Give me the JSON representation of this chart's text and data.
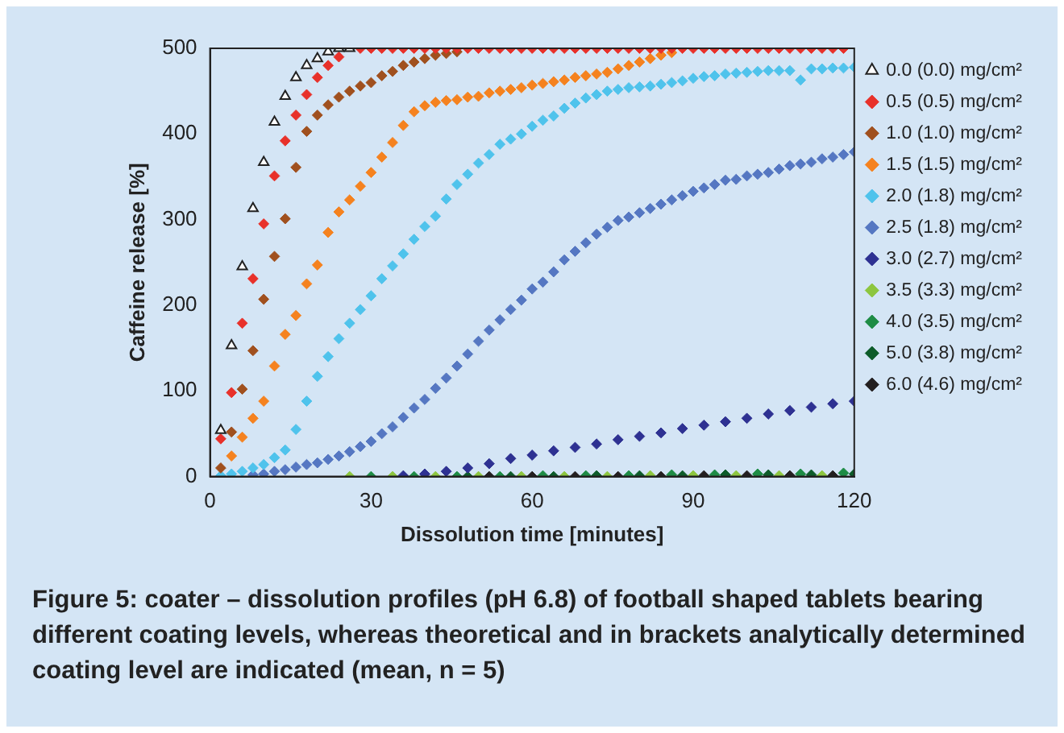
{
  "chart_data": {
    "type": "scatter",
    "xlabel": "Dissolution time [minutes]",
    "ylabel": "Caffeine release [%]",
    "xlim": [
      0,
      120
    ],
    "xticks": [
      0,
      30,
      60,
      90,
      120
    ],
    "ylim": [
      0,
      500
    ],
    "yticks": [
      0,
      100,
      200,
      300,
      400,
      500
    ],
    "grid": false,
    "legend": "right",
    "marker": "diamond",
    "series": [
      {
        "name": "0.0 (0.0) mg/cm²",
        "color": "#222222",
        "marker": "triangle",
        "x": [
          2,
          4,
          6,
          8,
          10,
          12,
          14,
          16,
          18,
          20,
          22,
          24,
          26
        ],
        "values": [
          54,
          153,
          245,
          313,
          367,
          414,
          444,
          466,
          480,
          488,
          496,
          500,
          500
        ]
      },
      {
        "name": "0.5 (0.5) mg/cm²",
        "color": "#e8312a",
        "x": [
          2,
          4,
          6,
          8,
          10,
          12,
          14,
          16,
          18,
          20,
          22,
          24,
          28,
          30,
          32,
          34,
          36,
          38,
          40,
          42,
          44,
          46,
          48,
          50,
          52,
          54,
          56,
          58,
          60,
          62,
          64,
          66,
          68,
          70,
          72,
          74,
          76,
          78,
          80,
          82,
          84,
          86,
          88,
          90,
          92,
          94,
          96,
          98,
          100,
          102,
          104,
          106,
          108,
          110,
          112,
          114,
          116,
          118
        ],
        "values": [
          44,
          98,
          179,
          231,
          295,
          351,
          392,
          422,
          446,
          466,
          480,
          490,
          500,
          500,
          500,
          500,
          500,
          500,
          500,
          500,
          500,
          500,
          500,
          500,
          500,
          500,
          500,
          500,
          500,
          500,
          500,
          500,
          500,
          500,
          500,
          500,
          500,
          500,
          500,
          500,
          500,
          500,
          500,
          500,
          500,
          500,
          500,
          500,
          500,
          500,
          500,
          500,
          500,
          500,
          500,
          500,
          500,
          500
        ]
      },
      {
        "name": "1.0 (1.0) mg/cm²",
        "color": "#a0501e",
        "x": [
          2,
          4,
          6,
          8,
          10,
          12,
          14,
          16,
          18,
          20,
          22,
          24,
          26,
          28,
          30,
          32,
          34,
          36,
          38,
          40,
          42,
          44,
          46
        ],
        "values": [
          10,
          52,
          102,
          147,
          207,
          257,
          301,
          361,
          403,
          422,
          434,
          443,
          450,
          456,
          460,
          468,
          473,
          480,
          484,
          488,
          492,
          494,
          496
        ]
      },
      {
        "name": "1.5 (1.5) mg/cm²",
        "color": "#f5821f",
        "x": [
          4,
          6,
          8,
          10,
          12,
          14,
          16,
          18,
          20,
          22,
          24,
          26,
          28,
          30,
          32,
          34,
          36,
          38,
          40,
          42,
          44,
          46,
          48,
          50,
          52,
          54,
          56,
          58,
          60,
          62,
          64,
          66,
          68,
          70,
          72,
          74,
          76,
          78,
          80,
          82,
          84,
          86
        ],
        "values": [
          24,
          46,
          68,
          88,
          129,
          166,
          188,
          225,
          247,
          285,
          309,
          323,
          339,
          355,
          373,
          390,
          410,
          426,
          433,
          437,
          439,
          440,
          443,
          444,
          448,
          450,
          452,
          454,
          457,
          459,
          461,
          463,
          466,
          468,
          470,
          472,
          476,
          480,
          484,
          488,
          492,
          495
        ]
      },
      {
        "name": "2.0 (1.8) mg/cm²",
        "color": "#4fc3ec",
        "x": [
          2,
          4,
          6,
          8,
          10,
          12,
          14,
          16,
          18,
          20,
          22,
          24,
          26,
          28,
          30,
          32,
          34,
          36,
          38,
          40,
          42,
          44,
          46,
          48,
          50,
          52,
          54,
          56,
          58,
          60,
          62,
          64,
          66,
          68,
          70,
          72,
          74,
          76,
          78,
          80,
          82,
          84,
          86,
          88,
          90,
          92,
          94,
          96,
          98,
          100,
          102,
          104,
          106,
          108,
          110,
          112,
          114,
          116,
          118,
          120
        ],
        "values": [
          1,
          3,
          6,
          10,
          14,
          22,
          31,
          55,
          88,
          117,
          140,
          161,
          179,
          195,
          211,
          231,
          246,
          260,
          277,
          292,
          304,
          324,
          341,
          353,
          366,
          376,
          388,
          394,
          400,
          409,
          416,
          421,
          430,
          436,
          442,
          446,
          450,
          452,
          454,
          455,
          456,
          458,
          460,
          462,
          465,
          467,
          468,
          470,
          471,
          472,
          473,
          474,
          474,
          474,
          463,
          476,
          476,
          477,
          477,
          478
        ]
      },
      {
        "name": "2.5 (1.8) mg/cm²",
        "color": "#5577c2",
        "x": [
          8,
          10,
          12,
          14,
          16,
          18,
          20,
          22,
          24,
          26,
          28,
          30,
          32,
          34,
          36,
          38,
          40,
          42,
          44,
          46,
          48,
          50,
          52,
          54,
          56,
          58,
          60,
          62,
          64,
          66,
          68,
          70,
          72,
          74,
          76,
          78,
          80,
          82,
          84,
          86,
          88,
          90,
          92,
          94,
          96,
          98,
          100,
          102,
          104,
          106,
          108,
          110,
          112,
          114,
          116,
          118,
          120
        ],
        "values": [
          2,
          3,
          6,
          8,
          11,
          14,
          16,
          20,
          24,
          29,
          35,
          41,
          50,
          58,
          69,
          80,
          90,
          103,
          115,
          129,
          143,
          158,
          171,
          183,
          195,
          206,
          219,
          227,
          239,
          253,
          263,
          273,
          283,
          291,
          299,
          303,
          308,
          313,
          318,
          323,
          328,
          333,
          337,
          341,
          346,
          347,
          351,
          353,
          355,
          359,
          363,
          365,
          367,
          371,
          373,
          376,
          379
        ]
      },
      {
        "name": "3.0 (2.7) mg/cm²",
        "color": "#2e3192",
        "x": [
          36,
          40,
          44,
          48,
          52,
          56,
          60,
          64,
          68,
          72,
          76,
          80,
          84,
          88,
          92,
          96,
          100,
          104,
          108,
          112,
          116,
          120
        ],
        "values": [
          1,
          3,
          6,
          10,
          15,
          21,
          25,
          30,
          34,
          38,
          43,
          47,
          51,
          56,
          60,
          64,
          68,
          73,
          77,
          81,
          85,
          88
        ]
      },
      {
        "name": "3.5 (3.3) mg/cm²",
        "color": "#8dc63f",
        "x": [
          26,
          34,
          42,
          50,
          58,
          66,
          74,
          82,
          90,
          98,
          106,
          114
        ],
        "values": [
          0,
          0,
          0,
          0,
          0,
          0,
          0,
          1,
          1,
          1,
          1,
          1
        ]
      },
      {
        "name": "4.0 (3.5) mg/cm²",
        "color": "#1e8c45",
        "x": [
          30,
          38,
          46,
          54,
          62,
          70,
          78,
          86,
          94,
          102,
          110,
          118
        ],
        "values": [
          0,
          0,
          0,
          0,
          1,
          1,
          1,
          2,
          2,
          3,
          3,
          4
        ]
      },
      {
        "name": "5.0 (3.8) mg/cm²",
        "color": "#0d5c2a",
        "x": [
          48,
          56,
          64,
          72,
          80,
          88,
          96,
          104,
          112,
          120
        ],
        "values": [
          0,
          0,
          0,
          1,
          1,
          1,
          2,
          2,
          2,
          3
        ]
      },
      {
        "name": "6.0 (4.6) mg/cm²",
        "color": "#231f20",
        "x": [
          52,
          60,
          68,
          76,
          84,
          92,
          100,
          108,
          116
        ],
        "values": [
          0,
          0,
          0,
          0,
          0,
          1,
          1,
          1,
          1
        ]
      }
    ],
    "annotations": [
      "Figure 5: coater – dissolution profiles (pH 6.8) of football shaped tablets bearing different coating levels, whereas theoretical and in brackets analytically determined coating level are indicated (mean, n = 5)"
    ]
  }
}
